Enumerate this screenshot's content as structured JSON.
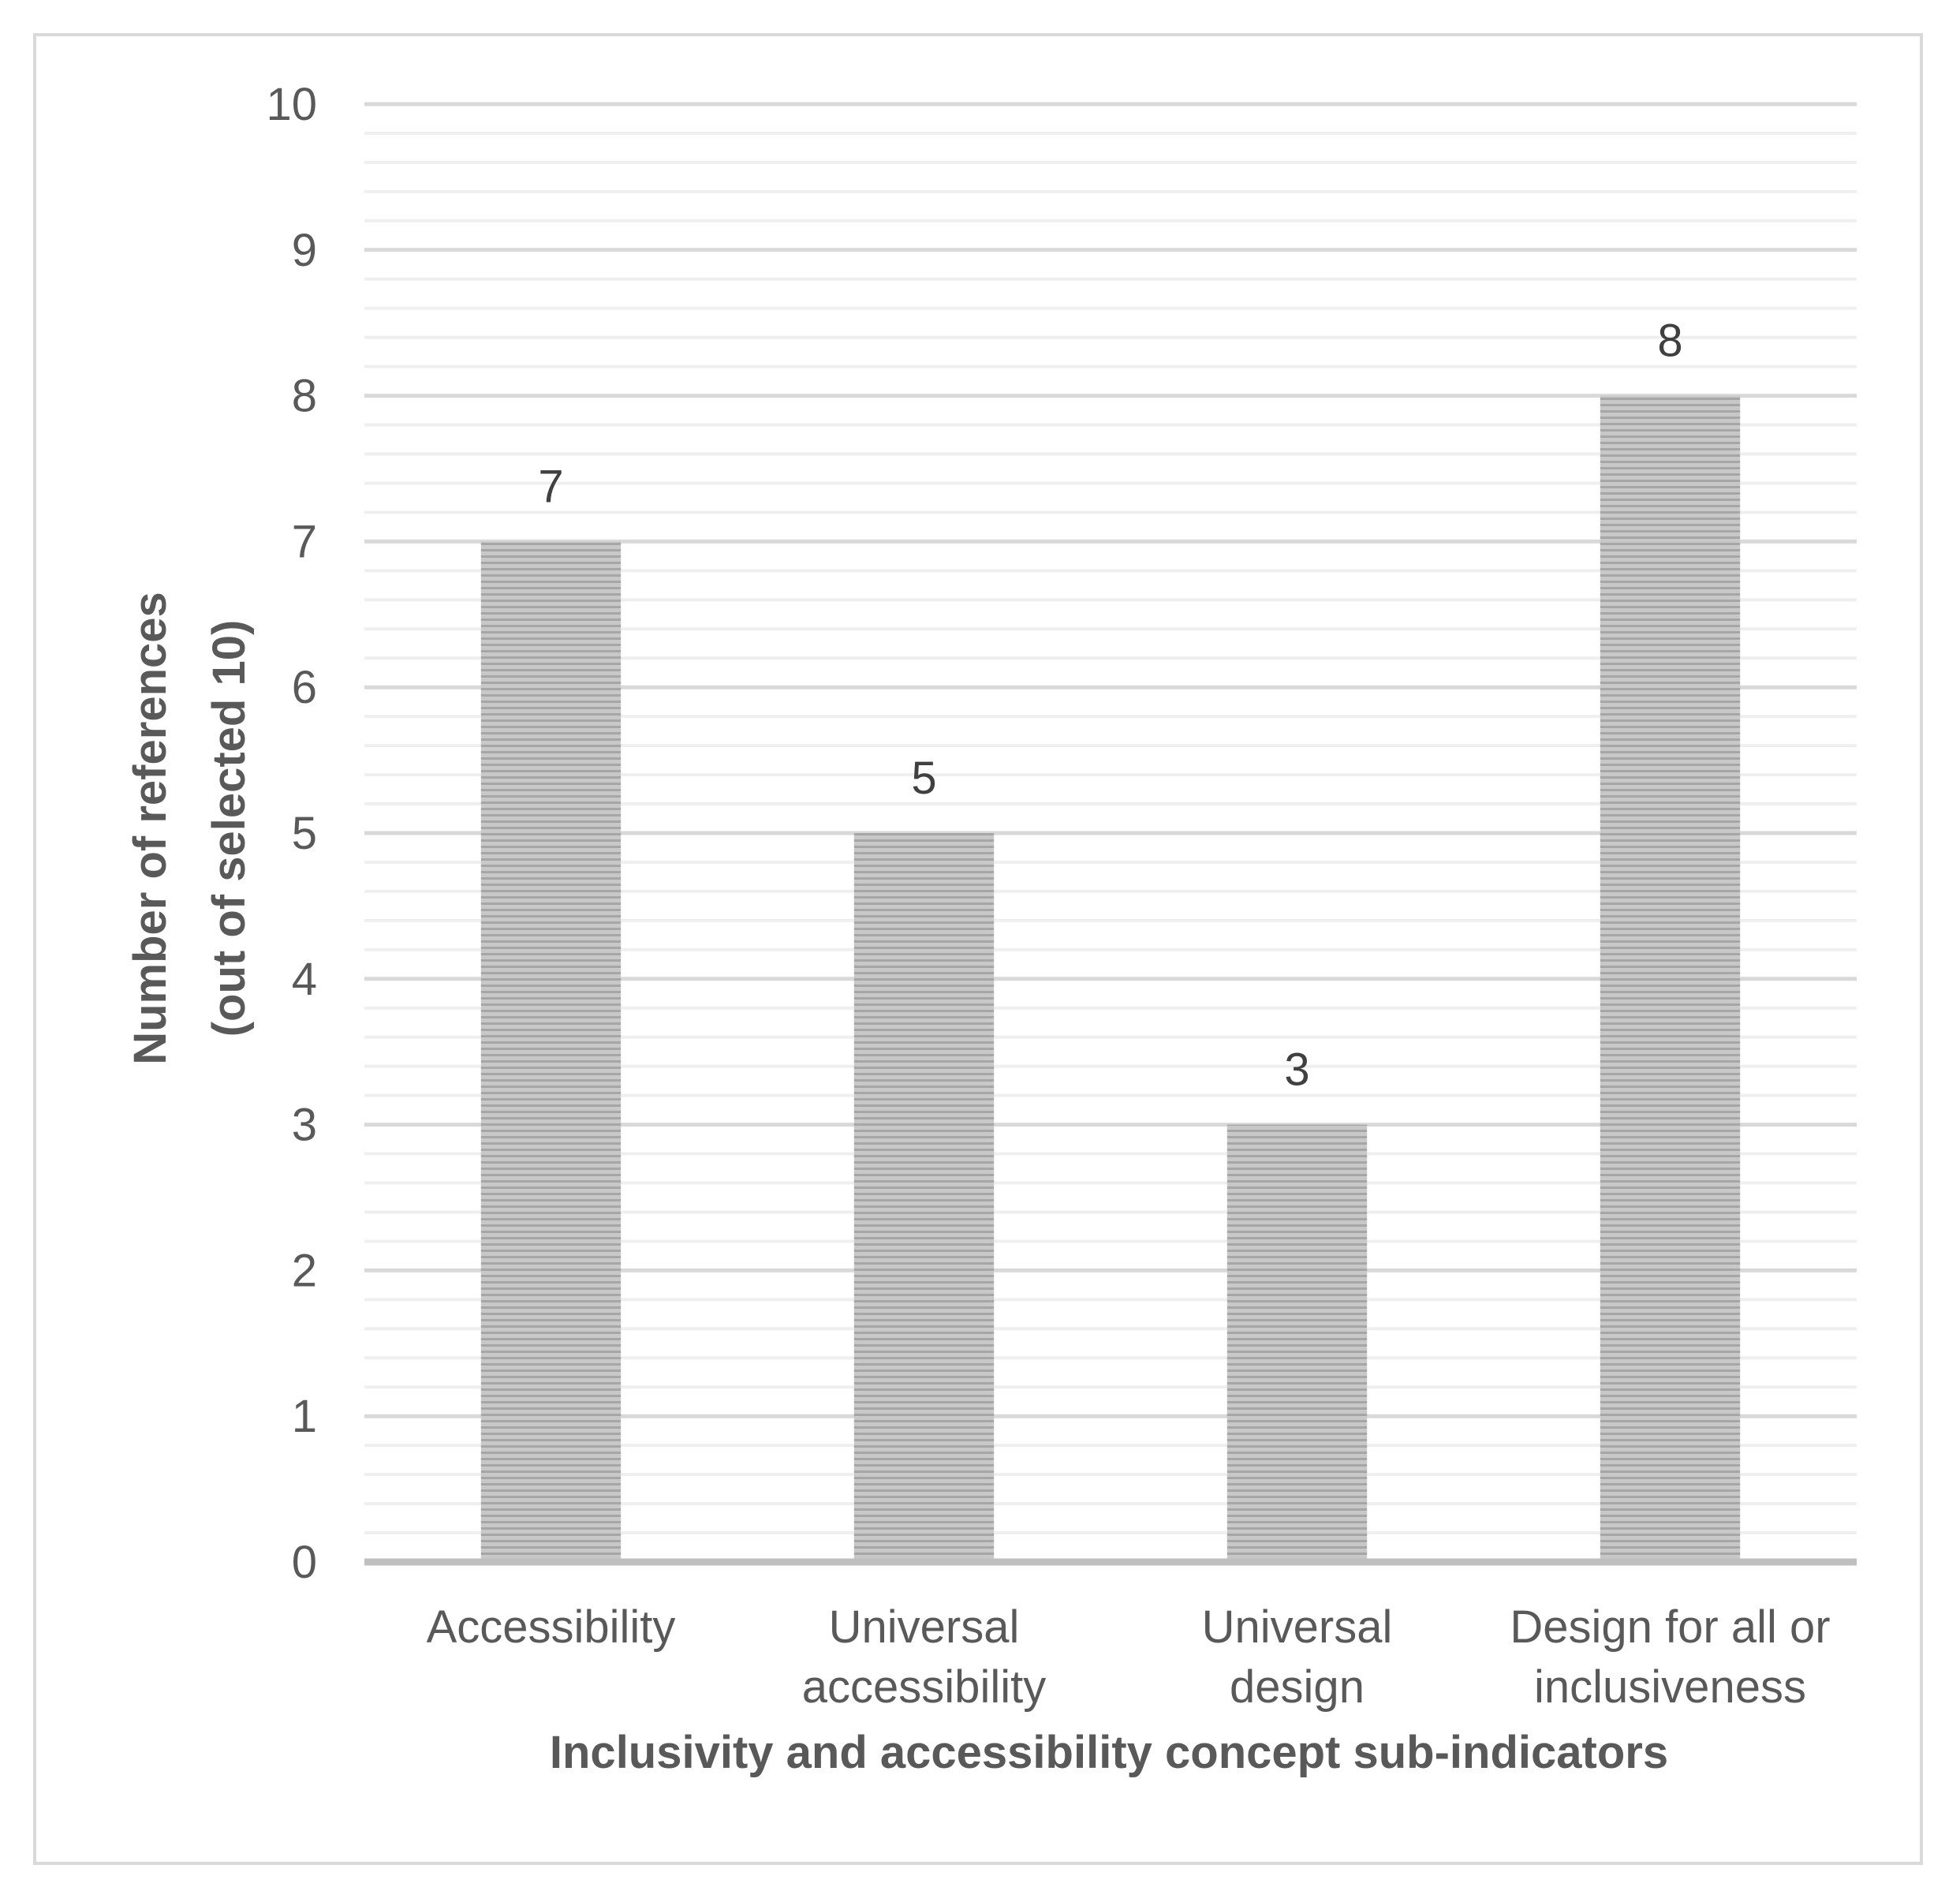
{
  "chart_data": {
    "type": "bar",
    "categories": [
      [
        "Accessibility"
      ],
      [
        "Universal",
        "accessibility"
      ],
      [
        "Universal",
        "design"
      ],
      [
        "Design for all or",
        "inclusiveness"
      ]
    ],
    "values": [
      7,
      5,
      3,
      8
    ],
    "data_labels": [
      "7",
      "5",
      "3",
      "8"
    ],
    "title": "",
    "xlabel": "Inclusivity and accessibility concept sub-indicators",
    "ylabel": [
      "Number of references",
      "(out of selected 10)"
    ],
    "ylim": [
      0,
      10
    ],
    "yticks": [
      "0",
      "1",
      "2",
      "3",
      "4",
      "5",
      "6",
      "7",
      "8",
      "9",
      "10"
    ],
    "grid": true,
    "legend": "none",
    "colors": {
      "bar_fill": "#c8c8c8",
      "bar_stripe": "#a6a6a6",
      "major_grid": "#d9d9d9",
      "minor_grid": "#efefef",
      "axis_line": "#bfbfbf",
      "text": "#595959",
      "label_text": "#404040"
    }
  }
}
